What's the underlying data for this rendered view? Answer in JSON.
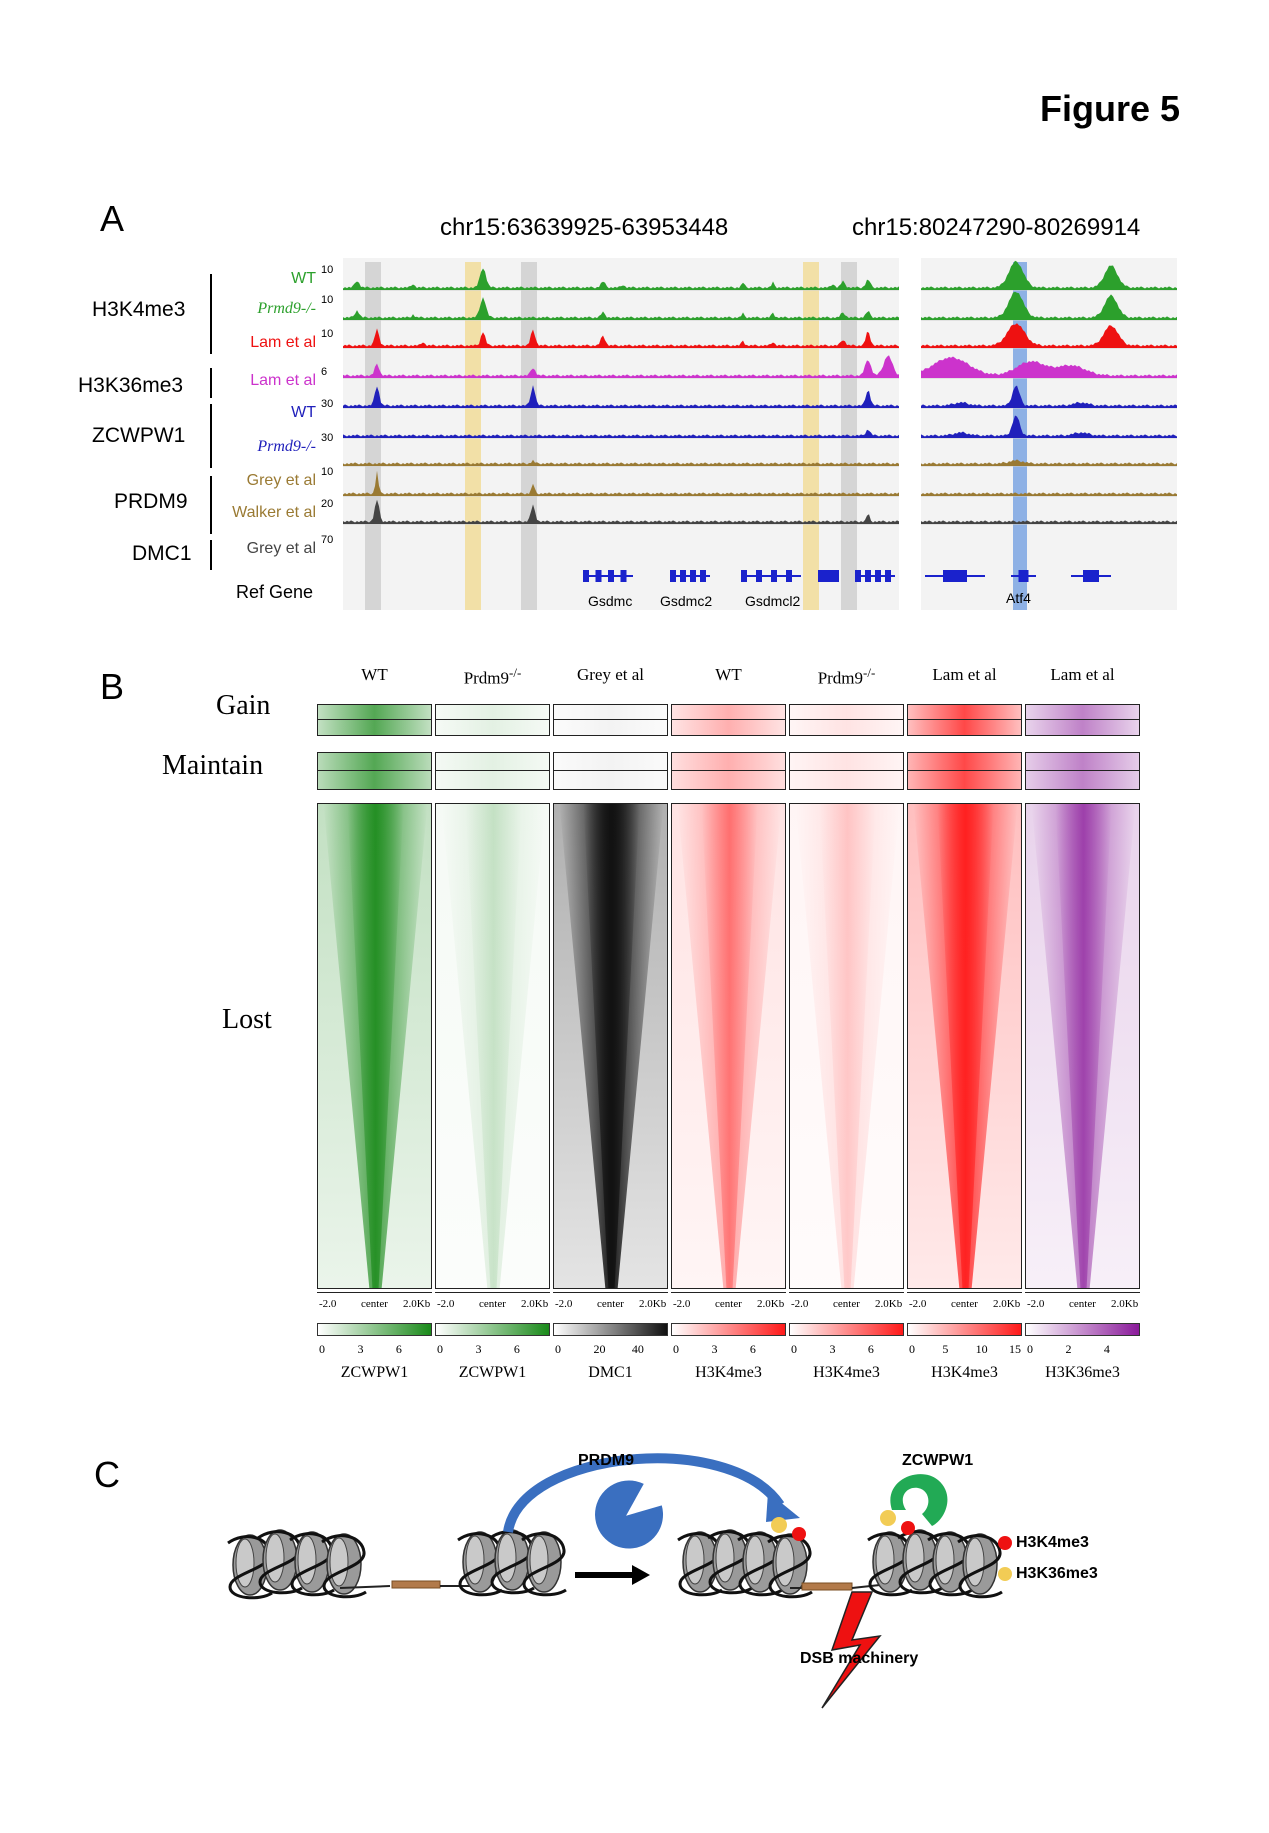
{
  "figure_title": "Figure 5",
  "panel_a": {
    "letter": "A",
    "region_left": "chr15:63639925-63953448",
    "region_right": "chr15:80247290-80269914",
    "groups": [
      "H3K4me3",
      "H3K36me3",
      "ZCWPW1",
      "PRDM9",
      "DMC1"
    ],
    "tracks": [
      {
        "name": "WT",
        "scale": "10",
        "color": "#2ca02c",
        "italic": false
      },
      {
        "name": "Prmd9-/-",
        "scale": "10",
        "color": "#2ca02c",
        "italic": true
      },
      {
        "name": "Lam et al",
        "scale": "10",
        "color": "#ee1111",
        "italic": false
      },
      {
        "name": "Lam et al",
        "scale": "6",
        "color": "#cc33cc",
        "italic": false
      },
      {
        "name": "WT",
        "scale": "30",
        "color": "#2020bb",
        "italic": false
      },
      {
        "name": "Prmd9-/-",
        "scale": "30",
        "color": "#2020bb",
        "italic": true
      },
      {
        "name": "Grey et al",
        "scale": "10",
        "color": "#9a7a33",
        "italic": false
      },
      {
        "name": "Walker et al",
        "scale": "20",
        "color": "#9a7a33",
        "italic": false
      },
      {
        "name": "Grey et al",
        "scale": "70",
        "color": "#444444",
        "italic": false
      }
    ],
    "ref_gene_label": "Ref Gene",
    "genes": [
      "Gsdmc",
      "Gsdmc2",
      "Gsdmcl2",
      "Atf4"
    ]
  },
  "panel_b": {
    "letter": "B",
    "row_labels": [
      "Gain",
      "Maintain",
      "Lost"
    ],
    "columns": [
      {
        "title": "WT",
        "sup": "",
        "color": "#1a8a1a",
        "mark": "ZCWPW1",
        "ticks": [
          "0",
          "3",
          "6"
        ]
      },
      {
        "title": "Prdm9",
        "sup": "-/-",
        "color": "#1a8a1a",
        "mark": "ZCWPW1",
        "ticks": [
          "0",
          "3",
          "6"
        ]
      },
      {
        "title": "Grey et al",
        "sup": "",
        "color": "#111111",
        "mark": "DMC1",
        "ticks": [
          "0",
          "20",
          "40"
        ]
      },
      {
        "title": "WT",
        "sup": "",
        "color": "#ff1a1a",
        "mark": "H3K4me3",
        "ticks": [
          "0",
          "3",
          "6"
        ]
      },
      {
        "title": "Prdm9",
        "sup": "-/-",
        "color": "#ff1a1a",
        "mark": "H3K4me3",
        "ticks": [
          "0",
          "3",
          "6"
        ]
      },
      {
        "title": "Lam et al",
        "sup": "",
        "color": "#ff1a1a",
        "mark": "H3K4me3",
        "ticks": [
          "0",
          "5",
          "10",
          "15"
        ]
      },
      {
        "title": "Lam et al",
        "sup": "",
        "color": "#8a1a9a",
        "mark": "H3K36me3",
        "ticks": [
          "0",
          "2",
          "4"
        ]
      }
    ],
    "x_axis": {
      "left": "-2.0",
      "mid": "center",
      "right": "2.0Kb"
    }
  },
  "panel_c": {
    "letter": "C",
    "prdm9_label": "PRDM9",
    "zcwpw1_label": "ZCWPW1",
    "dsb_label": "DSB machinery",
    "legend": [
      {
        "label": "H3K4me3",
        "color": "#ee1111"
      },
      {
        "label": "H3K36me3",
        "color": "#f2cc55"
      }
    ]
  }
}
